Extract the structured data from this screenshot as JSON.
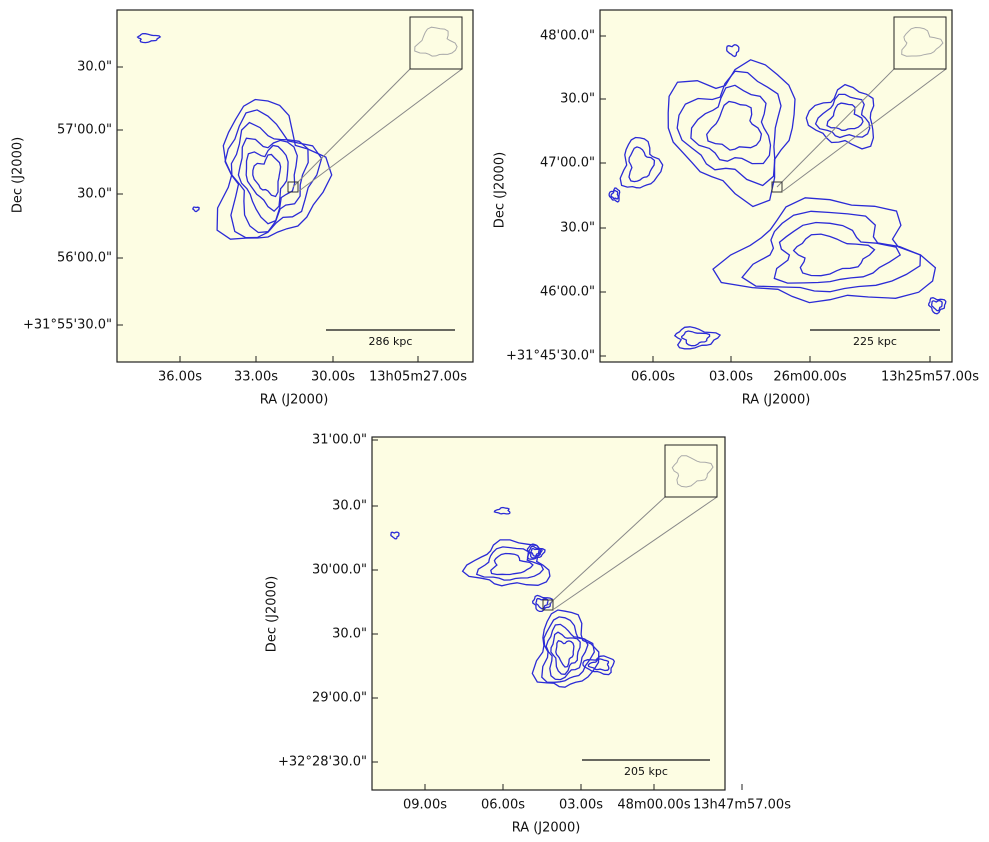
{
  "panels": [
    {
      "yticks": [
        "30.0\"",
        "57'00.0\"",
        "30.0\"",
        "56'00.0\"",
        "+31°55'30.0\""
      ],
      "xticks": [
        "36.00s",
        "33.00s",
        "30.00s",
        "13h05m27.00s"
      ],
      "xlabel": "RA (J2000)",
      "ylabel": "Dec (J2000)",
      "scale_bar": "286 kpc"
    },
    {
      "yticks": [
        "48'00.0\"",
        "30.0\"",
        "47'00.0\"",
        "30.0\"",
        "46'00.0\"",
        "+31°45'30.0\""
      ],
      "xticks": [
        "06.00s",
        "03.00s",
        "26m00.00s",
        "13h25m57.00s"
      ],
      "xlabel": "RA (J2000)",
      "ylabel": "Dec (J2000)",
      "scale_bar": "225 kpc"
    },
    {
      "yticks": [
        "31'00.0\"",
        "30.0\"",
        "30'00.0\"",
        "30.0\"",
        "29'00.0\"",
        "+32°28'30.0\""
      ],
      "xticks": [
        "09.00s",
        "06.00s",
        "03.00s",
        "48m00.00s",
        "13h47m57.00s"
      ],
      "xlabel": "RA (J2000)",
      "ylabel": "Dec (J2000)",
      "scale_bar": "205 kpc"
    }
  ]
}
